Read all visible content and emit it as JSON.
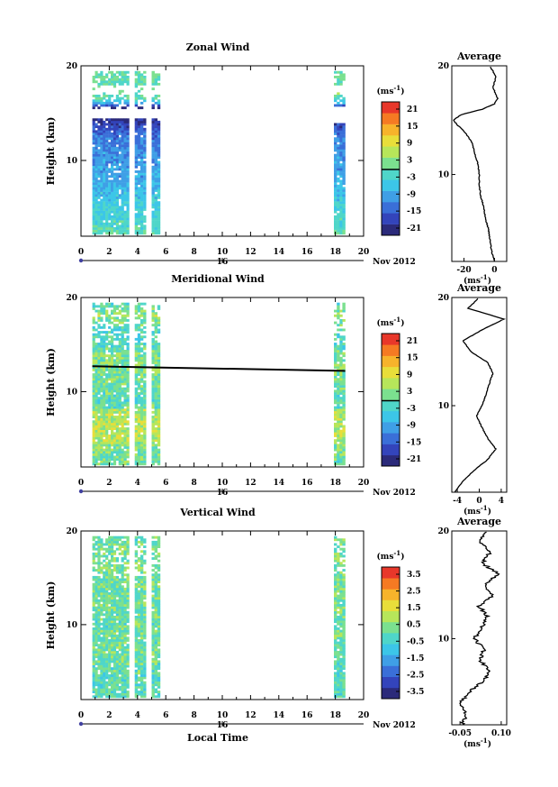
{
  "colors": {
    "cmap": [
      "#2b2a7a",
      "#3344bb",
      "#3a6fd8",
      "#3f9fe6",
      "#3cc6e8",
      "#4fd6c9",
      "#7be08f",
      "#b7e65a",
      "#e8de3a",
      "#f7b32b",
      "#f57a23",
      "#e8372a"
    ]
  },
  "date_label": "Nov 2012",
  "panels": [
    {
      "title": "Zonal Wind",
      "ylabel": "Height (km)",
      "yticks": [
        "20",
        "10"
      ],
      "xticks": [
        "0",
        "2",
        "4",
        "6",
        "8",
        "10",
        "12",
        "14",
        "16",
        "18",
        "20"
      ],
      "day": "16",
      "cbar_unit": "(ms-1)",
      "cbar_ticks": [
        "21",
        "15",
        "9",
        "3",
        "-3",
        "-9",
        "-15",
        "-21"
      ],
      "avg_title": "Average",
      "avg_xticks": [
        "-20",
        "0"
      ],
      "avg_xlabel": "(ms-1)",
      "avg_yticks": [
        "20",
        "10"
      ]
    },
    {
      "title": "Meridional Wind",
      "ylabel": "Height (km)",
      "yticks": [
        "20",
        "10"
      ],
      "xticks": [
        "0",
        "2",
        "4",
        "6",
        "8",
        "10",
        "12",
        "14",
        "16",
        "18",
        "20"
      ],
      "day": "16",
      "cbar_unit": "(ms-1)",
      "cbar_ticks": [
        "21",
        "15",
        "9",
        "3",
        "-3",
        "-9",
        "-15",
        "-21"
      ],
      "avg_title": "Average",
      "avg_xticks": [
        "-4",
        "0",
        "4"
      ],
      "avg_xlabel": "(ms-1)",
      "avg_yticks": [
        "20",
        "10"
      ]
    },
    {
      "title": "Vertical Wind",
      "ylabel": "Height (km)",
      "yticks": [
        "20",
        "10"
      ],
      "xticks": [
        "0",
        "2",
        "4",
        "6",
        "8",
        "10",
        "12",
        "14",
        "16",
        "18",
        "20"
      ],
      "day": "16",
      "cbar_unit": "(ms-1)",
      "cbar_ticks": [
        "3.5",
        "2.5",
        "1.5",
        "0.5",
        "-0.5",
        "-1.5",
        "-2.5",
        "-3.5"
      ],
      "avg_title": "Average",
      "avg_xticks": [
        "-0.05",
        "0.10"
      ],
      "avg_xlabel": "(ms-1)",
      "avg_yticks": [
        "20",
        "10"
      ],
      "xlabel": "Local Time"
    }
  ],
  "chart_data": [
    {
      "type": "heatmap",
      "title": "Zonal Wind",
      "ylabel": "Height (km)",
      "xlim": [
        0,
        20
      ],
      "ylim": [
        2,
        20
      ],
      "data_columns_local_time": [
        [
          0.8,
          3.4
        ],
        [
          3.8,
          4.6
        ],
        [
          5.0,
          5.6
        ],
        [
          17.9,
          18.7
        ]
      ],
      "color_range": [
        -24,
        24
      ],
      "profile": {
        "heights": [
          2,
          3,
          4,
          5,
          6,
          7,
          8,
          9,
          10,
          11,
          12,
          13,
          14,
          14.5,
          15,
          15.5,
          16,
          16.5,
          17,
          18,
          19,
          20
        ],
        "values": [
          0,
          -2,
          -3,
          -4,
          -6,
          -7,
          -9,
          -10,
          -10,
          -11,
          -13,
          -15,
          -20,
          -24,
          -27,
          -22,
          -8,
          0,
          2,
          -1,
          1,
          -3
        ]
      },
      "profile_xlim": [
        -28,
        8
      ]
    },
    {
      "type": "heatmap",
      "title": "Meridional Wind",
      "ylabel": "Height (km)",
      "xlim": [
        0,
        20
      ],
      "ylim": [
        2,
        20
      ],
      "data_columns_local_time": [
        [
          0.8,
          3.4
        ],
        [
          3.8,
          4.6
        ],
        [
          5.0,
          5.6
        ],
        [
          17.9,
          18.7
        ]
      ],
      "color_range": [
        -24,
        24
      ],
      "profile": {
        "heights": [
          2,
          3,
          4,
          5,
          6,
          7,
          8,
          9,
          10,
          11,
          12,
          13,
          14,
          15,
          16,
          17,
          18,
          19,
          20
        ],
        "values": [
          -4.5,
          -3,
          -1,
          1.5,
          3,
          1.5,
          0.5,
          -0.5,
          0.5,
          1.2,
          1.8,
          2.5,
          1.5,
          -1.5,
          -3,
          0.5,
          4.5,
          -2,
          0
        ]
      },
      "profile_xlim": [
        -5,
        5
      ]
    },
    {
      "type": "heatmap",
      "title": "Vertical Wind",
      "ylabel": "Height (km)",
      "xlabel": "Local Time",
      "xlim": [
        0,
        20
      ],
      "ylim": [
        2,
        20
      ],
      "data_columns_local_time": [
        [
          0.8,
          3.4
        ],
        [
          3.8,
          4.6
        ],
        [
          5.0,
          5.6
        ],
        [
          17.9,
          18.7
        ]
      ],
      "color_range": [
        -4,
        4
      ],
      "profile": {
        "heights": [
          2,
          3,
          4,
          5,
          6,
          7,
          8,
          9,
          10,
          11,
          12,
          13,
          14,
          15,
          16,
          17,
          18,
          19,
          20
        ],
        "values": [
          -0.04,
          -0.03,
          -0.05,
          -0.02,
          0.03,
          0.06,
          0.02,
          0.04,
          0.0,
          0.03,
          0.05,
          0.02,
          0.07,
          0.04,
          0.09,
          0.03,
          0.06,
          0.02,
          0.05
        ]
      },
      "profile_xlim": [
        -0.08,
        0.12
      ]
    }
  ]
}
